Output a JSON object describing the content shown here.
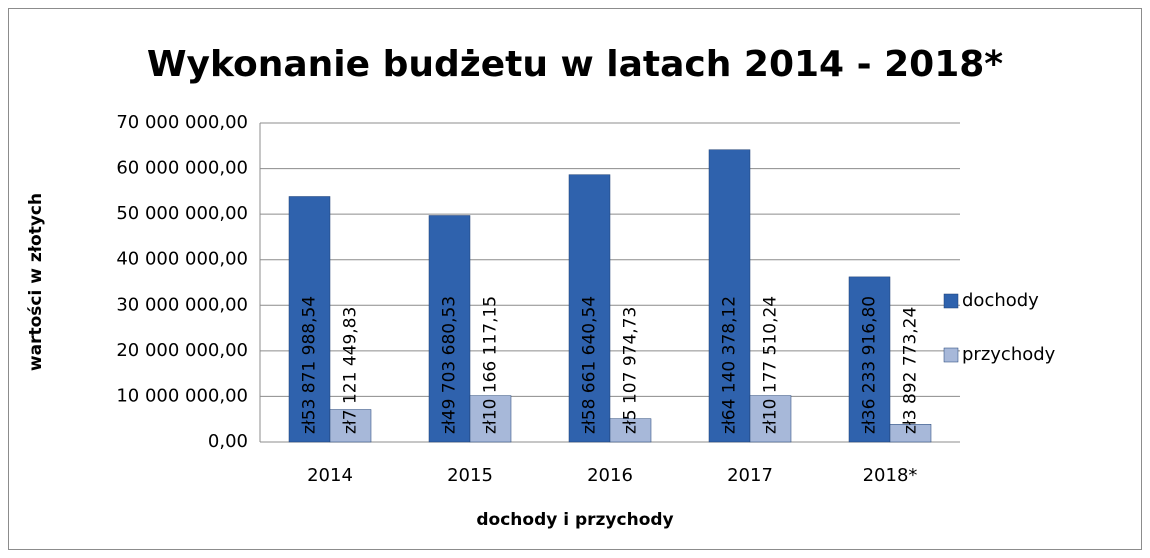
{
  "chart_data": {
    "type": "bar",
    "title": "Wykonanie budżetu w latach 2014 - 2018*",
    "x_label": "dochody i przychody",
    "y_label": "wartości w złotych",
    "categories": [
      "2014",
      "2015",
      "2016",
      "2017",
      "2018*"
    ],
    "series": [
      {
        "name": "dochody",
        "color": "#2f62ad",
        "values": [
          53871988.54,
          49703680.53,
          58661640.54,
          64140378.12,
          36233916.8
        ],
        "value_labels": [
          "zł53 871 988,54",
          "zł49 703 680,53",
          "zł58 661 640,54",
          "zł64 140 378,12",
          "zł36 233 916,80"
        ]
      },
      {
        "name": "przychody",
        "color": "#a7b8d9",
        "values": [
          7121449.83,
          10166117.15,
          5107974.73,
          10177510.24,
          3892773.24
        ],
        "value_labels": [
          "zł7 121 449,83",
          "zł10 166 117,15",
          "zł5 107 974,73",
          "zł10 177 510,24",
          "zł3 892 773,24"
        ]
      }
    ],
    "ylim": [
      0,
      70000000
    ],
    "yticks": [
      {
        "value": 0,
        "label": "0,00"
      },
      {
        "value": 10000000,
        "label": "10 000 000,00"
      },
      {
        "value": 20000000,
        "label": "20 000 000,00"
      },
      {
        "value": 30000000,
        "label": "30 000 000,00"
      },
      {
        "value": 40000000,
        "label": "40 000 000,00"
      },
      {
        "value": 50000000,
        "label": "50 000 000,00"
      },
      {
        "value": 60000000,
        "label": "60 000 000,00"
      },
      {
        "value": 70000000,
        "label": "70 000 000,00"
      }
    ],
    "grid": true,
    "legend": "right"
  }
}
